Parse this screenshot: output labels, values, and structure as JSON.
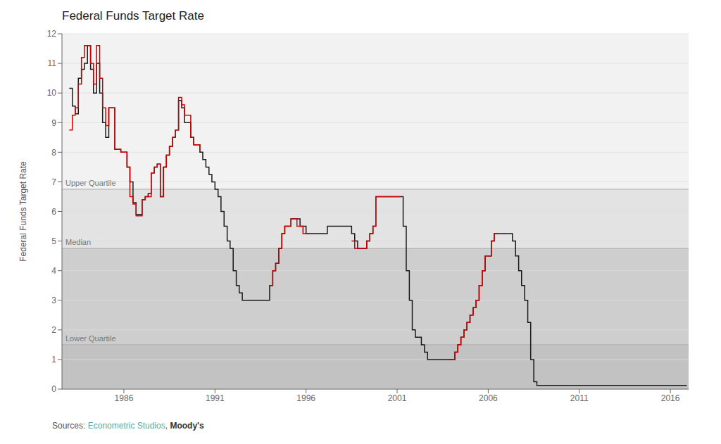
{
  "chart_data": {
    "type": "step",
    "title": "Federal Funds Target Rate",
    "ylabel": "Federal Funds Target Rate",
    "xlim": [
      1982.6,
      2017.0
    ],
    "xticks": [
      1986,
      1991,
      1996,
      2001,
      2006,
      2011,
      2016
    ],
    "ylim": [
      0,
      12
    ],
    "yticks": [
      0,
      1,
      2,
      3,
      4,
      5,
      6,
      7,
      8,
      9,
      10,
      11,
      12
    ],
    "grid": true,
    "bands": [
      {
        "y": [
          6.75,
          12
        ],
        "color": "#f2f2f2"
      },
      {
        "y": [
          4.75,
          6.75
        ],
        "color": "#e3e3e3"
      },
      {
        "y": [
          1.5,
          4.75
        ],
        "color": "#cecece"
      },
      {
        "y": [
          0,
          1.5
        ],
        "color": "#c2c2c2"
      }
    ],
    "annotations": [
      {
        "y": 6.75,
        "text": "Upper Quartile"
      },
      {
        "y": 4.75,
        "text": "Median"
      },
      {
        "y": 1.5,
        "text": "Lower Quartile"
      }
    ],
    "source": [
      {
        "text": "Sources: "
      },
      {
        "text": "Econometric Studios",
        "color": "#5aaa9a"
      },
      {
        "text": ", "
      },
      {
        "text": "Moody's"
      }
    ],
    "series": [
      {
        "color": "#1a1a1a",
        "x": [
          1983.0,
          1983.17,
          1983.33,
          1983.5,
          1983.67,
          1983.83,
          1984.0,
          1984.17,
          1984.33,
          1984.5,
          1984.67,
          1984.83,
          1985.0,
          1985.17,
          1985.33,
          1985.5,
          1985.67,
          1985.83,
          1986.0,
          1986.17,
          1986.33,
          1986.5,
          1986.67,
          1986.83,
          1987.0,
          1987.17,
          1987.33,
          1987.5,
          1987.67,
          1987.83,
          1988.0,
          1988.17,
          1988.33,
          1988.5,
          1988.67,
          1988.83,
          1989.0,
          1989.17,
          1989.33,
          1989.5,
          1989.67,
          1989.83,
          1990.0,
          1990.17,
          1990.33,
          1990.5,
          1990.67,
          1990.83,
          1991.0,
          1991.17,
          1991.33,
          1991.5,
          1991.67,
          1991.83,
          1992.0,
          1992.17,
          1992.33,
          1992.5,
          1992.67,
          1992.83,
          1993.0,
          1993.17,
          1993.33,
          1993.5,
          1993.67,
          1993.83,
          1994.0,
          1994.17,
          1994.33,
          1994.5,
          1994.67,
          1994.83,
          1995.0,
          1995.17,
          1995.33,
          1995.5,
          1995.67,
          1995.83,
          1996.0,
          1996.17,
          1996.33,
          1996.5,
          1996.67,
          1996.83,
          1997.0,
          1997.17,
          1997.33,
          1997.5,
          1997.67,
          1997.83,
          1998.0,
          1998.17,
          1998.33,
          1998.5,
          1998.67,
          1998.83,
          1999.0,
          1999.17,
          1999.33,
          1999.5,
          1999.67,
          1999.83,
          2000.0,
          2000.17,
          2000.33,
          2000.5,
          2000.67,
          2000.83,
          2001.0,
          2001.17,
          2001.33,
          2001.5,
          2001.67,
          2001.83,
          2002.0,
          2002.17,
          2002.33,
          2002.5,
          2002.67,
          2002.83,
          2003.0,
          2003.17,
          2003.33,
          2003.5,
          2003.67,
          2003.83,
          2004.0,
          2004.17,
          2004.33,
          2004.5,
          2004.67,
          2004.83,
          2005.0,
          2005.17,
          2005.33,
          2005.5,
          2005.67,
          2005.83,
          2006.0,
          2006.17,
          2006.33,
          2006.5,
          2006.67,
          2006.83,
          2007.0,
          2007.17,
          2007.33,
          2007.5,
          2007.67,
          2007.83,
          2008.0,
          2008.17,
          2008.33,
          2008.5,
          2008.67,
          2008.83,
          2009.0,
          2010.0,
          2011.0,
          2012.0,
          2013.0,
          2014.0,
          2015.0,
          2016.0,
          2016.9
        ],
        "values": [
          10.16,
          9.56,
          9.3,
          10.5,
          10.8,
          11.0,
          11.6,
          10.8,
          10.0,
          11.0,
          10.0,
          9.0,
          8.5,
          9.5,
          9.5,
          8.1,
          8.1,
          8.0,
          8.0,
          7.5,
          7.0,
          6.3,
          5.9,
          5.9,
          6.4,
          6.5,
          6.6,
          7.3,
          7.5,
          7.6,
          6.5,
          7.5,
          7.9,
          8.2,
          8.5,
          8.75,
          9.75,
          9.5,
          9.0,
          9.0,
          8.5,
          8.25,
          8.25,
          8.0,
          7.75,
          7.5,
          7.25,
          7.0,
          6.75,
          6.5,
          6.0,
          5.5,
          5.0,
          4.75,
          4.0,
          3.5,
          3.25,
          3.0,
          3.0,
          3.0,
          3.0,
          3.0,
          3.0,
          3.0,
          3.0,
          3.0,
          3.5,
          4.0,
          4.25,
          4.75,
          5.25,
          5.5,
          5.5,
          5.75,
          5.75,
          5.75,
          5.5,
          5.5,
          5.25,
          5.25,
          5.25,
          5.25,
          5.25,
          5.25,
          5.25,
          5.5,
          5.5,
          5.5,
          5.5,
          5.5,
          5.5,
          5.5,
          5.5,
          5.25,
          5.0,
          4.75,
          4.75,
          4.75,
          5.0,
          5.25,
          5.5,
          6.5,
          6.5,
          6.5,
          6.5,
          6.5,
          6.5,
          6.5,
          6.5,
          6.5,
          5.5,
          4.0,
          3.0,
          2.0,
          1.75,
          1.75,
          1.5,
          1.25,
          1.0,
          1.0,
          1.0,
          1.0,
          1.0,
          1.0,
          1.0,
          1.0,
          1.0,
          1.25,
          1.5,
          1.75,
          2.0,
          2.25,
          2.5,
          2.75,
          3.0,
          3.5,
          4.0,
          4.5,
          4.5,
          5.0,
          5.25,
          5.25,
          5.25,
          5.25,
          5.25,
          5.25,
          5.0,
          4.5,
          4.0,
          3.5,
          3.0,
          2.25,
          1.0,
          0.25,
          0.125,
          0.125,
          0.125,
          0.125,
          0.125,
          0.125,
          0.125,
          0.125,
          0.125,
          0.125,
          0.125
        ]
      },
      {
        "color": "#cc0000",
        "x": [
          1983.0,
          1983.17,
          1983.33,
          1983.5,
          1983.67,
          1983.83,
          1984.0,
          1984.17,
          1984.33,
          1984.5,
          1984.67,
          1984.83,
          1985.0,
          1985.17,
          1985.33,
          1985.5,
          1985.67,
          1985.83,
          1986.0,
          1986.17,
          1986.33,
          1986.5,
          1986.67,
          1986.83,
          1987.0,
          1987.17,
          1987.33,
          1987.5,
          1987.67,
          1987.83,
          1988.0,
          1988.17,
          1988.33,
          1988.5,
          1988.67,
          1988.83,
          1989.0,
          1989.17,
          1989.33,
          1989.5,
          1989.67,
          1989.83,
          1990.0,
          1990.17
        ],
        "values": [
          8.75,
          9.25,
          9.5,
          10.3,
          11.2,
          11.6,
          11.6,
          11.0,
          10.3,
          11.6,
          10.5,
          9.5,
          8.9,
          9.5,
          9.5,
          8.1,
          8.1,
          8.0,
          8.0,
          7.5,
          6.5,
          6.25,
          5.85,
          5.85,
          6.4,
          6.5,
          6.5,
          7.3,
          7.5,
          7.6,
          6.5,
          7.5,
          7.9,
          8.2,
          8.5,
          8.75,
          9.85,
          9.6,
          9.25,
          9.25,
          8.5,
          8.25,
          8.25,
          8.0
        ]
      },
      {
        "color": "#cc0000",
        "x": [
          1994.0,
          1994.17,
          1994.33,
          1994.5,
          1994.67,
          1994.83,
          1995.0,
          1995.17,
          1995.33,
          1995.5,
          1995.67,
          1995.83,
          1996.0,
          1996.17
        ],
        "values": [
          3.5,
          4.0,
          4.25,
          4.75,
          5.25,
          5.5,
          5.5,
          5.75,
          5.75,
          5.5,
          5.5,
          5.25,
          5.25,
          5.25
        ]
      },
      {
        "color": "#cc0000",
        "x": [
          1998.5,
          1998.67,
          1998.83,
          1999.0,
          1999.17,
          1999.33,
          1999.5,
          1999.67,
          1999.83,
          2000.0,
          2000.17,
          2000.33,
          2000.5,
          2000.67,
          2000.83,
          2001.0,
          2001.17
        ],
        "values": [
          5.0,
          4.75,
          4.75,
          4.75,
          4.75,
          5.0,
          5.25,
          5.5,
          6.5,
          6.5,
          6.5,
          6.5,
          6.5,
          6.5,
          6.5,
          6.5,
          6.5
        ]
      },
      {
        "color": "#cc0000",
        "x": [
          2003.83,
          2004.0,
          2004.17,
          2004.33,
          2004.5,
          2004.67,
          2004.83,
          2005.0,
          2005.17,
          2005.33,
          2005.5,
          2005.67,
          2005.83,
          2006.0,
          2006.17,
          2006.33,
          2006.5
        ],
        "values": [
          1.0,
          1.0,
          1.25,
          1.5,
          1.75,
          2.0,
          2.25,
          2.5,
          2.75,
          3.0,
          3.5,
          4.0,
          4.5,
          4.5,
          5.0,
          5.25,
          5.25
        ]
      }
    ]
  }
}
